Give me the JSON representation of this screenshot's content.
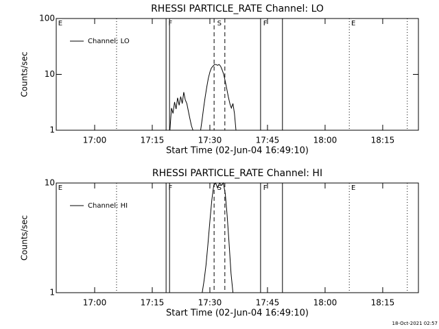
{
  "chart_data": [
    {
      "type": "line",
      "title": "RHESSI PARTICLE_RATE Channel: LO",
      "xlabel": "Start Time (02-Jun-04 16:49:10)",
      "ylabel": "Counts/sec",
      "log_y": true,
      "xlim": [
        1010,
        1104.3
      ],
      "ylim": [
        1,
        100
      ],
      "xticks": [
        {
          "value": 1020,
          "label": "17:00"
        },
        {
          "value": 1035,
          "label": "17:15"
        },
        {
          "value": 1050,
          "label": "17:30"
        },
        {
          "value": 1065,
          "label": "17:45"
        },
        {
          "value": 1080,
          "label": "18:00"
        },
        {
          "value": 1095,
          "label": "18:15"
        }
      ],
      "yticks": [
        1,
        10,
        100
      ],
      "x": [
        1039.6,
        1040.0,
        1040.4,
        1040.8,
        1041.2,
        1041.6,
        1042.0,
        1042.4,
        1042.8,
        1043.2,
        1043.6,
        1044.0,
        1044.4,
        1044.8,
        1045.2,
        1045.6,
        1046.6,
        1047.6,
        1048.0,
        1048.4,
        1048.8,
        1049.2,
        1049.6,
        1050.0,
        1050.4,
        1050.8,
        1051.2,
        1051.6,
        1052.0,
        1052.4,
        1052.8,
        1053.2,
        1053.6,
        1054.0,
        1054.4,
        1054.8,
        1055.2,
        1055.6,
        1056.0,
        1056.4,
        1056.8
      ],
      "series": [
        {
          "name": "Channel: LO",
          "color": "#000000",
          "values": [
            1.0,
            2.5,
            2.0,
            3.2,
            2.4,
            3.8,
            2.8,
            4.0,
            3.0,
            4.8,
            3.5,
            3.0,
            2.2,
            1.6,
            1.2,
            1.0,
            null,
            1.0,
            1.6,
            2.6,
            4.0,
            6.0,
            8.5,
            11,
            13,
            14,
            15,
            15,
            14.5,
            15,
            14,
            12,
            10,
            7.5,
            5.5,
            4.0,
            3.0,
            2.5,
            3.0,
            2.0,
            1.0
          ]
        }
      ],
      "event_lines": [
        {
          "x": 1025.7,
          "style": "dotted"
        },
        {
          "x": 1038.6,
          "style": "solid"
        },
        {
          "x": 1039.5,
          "style": "solid"
        },
        {
          "x": 1051.1,
          "style": "dashed"
        },
        {
          "x": 1053.9,
          "style": "dashed"
        },
        {
          "x": 1063.2,
          "style": "solid"
        },
        {
          "x": 1068.9,
          "style": "solid"
        },
        {
          "x": 1086.3,
          "style": "dotted"
        },
        {
          "x": 1101.4,
          "style": "dotted"
        }
      ],
      "event_labels": [
        {
          "x": 1010.5,
          "label": "E"
        },
        {
          "x": 1039.2,
          "label": "F"
        },
        {
          "x": 1051.9,
          "label": "S"
        },
        {
          "x": 1063.9,
          "label": "F"
        },
        {
          "x": 1086.8,
          "label": "E"
        }
      ]
    },
    {
      "type": "line",
      "title": "RHESSI PARTICLE_RATE Channel: HI",
      "xlabel": "Start Time (02-Jun-04 16:49:10)",
      "ylabel": "Counts/sec",
      "log_y": true,
      "xlim": [
        1010,
        1104.3
      ],
      "ylim": [
        1,
        10
      ],
      "xticks": [
        {
          "value": 1020,
          "label": "17:00"
        },
        {
          "value": 1035,
          "label": "17:15"
        },
        {
          "value": 1050,
          "label": "17:30"
        },
        {
          "value": 1065,
          "label": "17:45"
        },
        {
          "value": 1080,
          "label": "18:00"
        },
        {
          "value": 1095,
          "label": "18:15"
        }
      ],
      "yticks": [
        1,
        10
      ],
      "x": [
        1048.0,
        1048.5,
        1049.0,
        1049.5,
        1050.0,
        1050.5,
        1051.0,
        1051.5,
        1052.0,
        1052.5,
        1053.0,
        1053.5,
        1054.0,
        1054.5,
        1055.0,
        1055.5,
        1056.0
      ],
      "series": [
        {
          "name": "Channel: HI",
          "color": "#000000",
          "values": [
            1.0,
            1.3,
            1.8,
            2.8,
            4.5,
            7,
            9.5,
            10,
            9.0,
            10,
            9.5,
            10,
            8,
            5,
            2.8,
            1.5,
            1.0
          ]
        }
      ],
      "event_lines": [
        {
          "x": 1025.7,
          "style": "dotted"
        },
        {
          "x": 1038.6,
          "style": "solid"
        },
        {
          "x": 1039.5,
          "style": "solid"
        },
        {
          "x": 1051.1,
          "style": "dashed"
        },
        {
          "x": 1053.9,
          "style": "dashed"
        },
        {
          "x": 1063.2,
          "style": "solid"
        },
        {
          "x": 1068.9,
          "style": "solid"
        },
        {
          "x": 1086.3,
          "style": "dotted"
        },
        {
          "x": 1101.4,
          "style": "dotted"
        }
      ],
      "event_labels": [
        {
          "x": 1010.5,
          "label": "E"
        },
        {
          "x": 1039.2,
          "label": "F"
        },
        {
          "x": 1051.9,
          "label": "S"
        },
        {
          "x": 1063.9,
          "label": "F"
        },
        {
          "x": 1086.8,
          "label": "E"
        }
      ]
    }
  ],
  "footer": "18-Oct-2021 02:57"
}
